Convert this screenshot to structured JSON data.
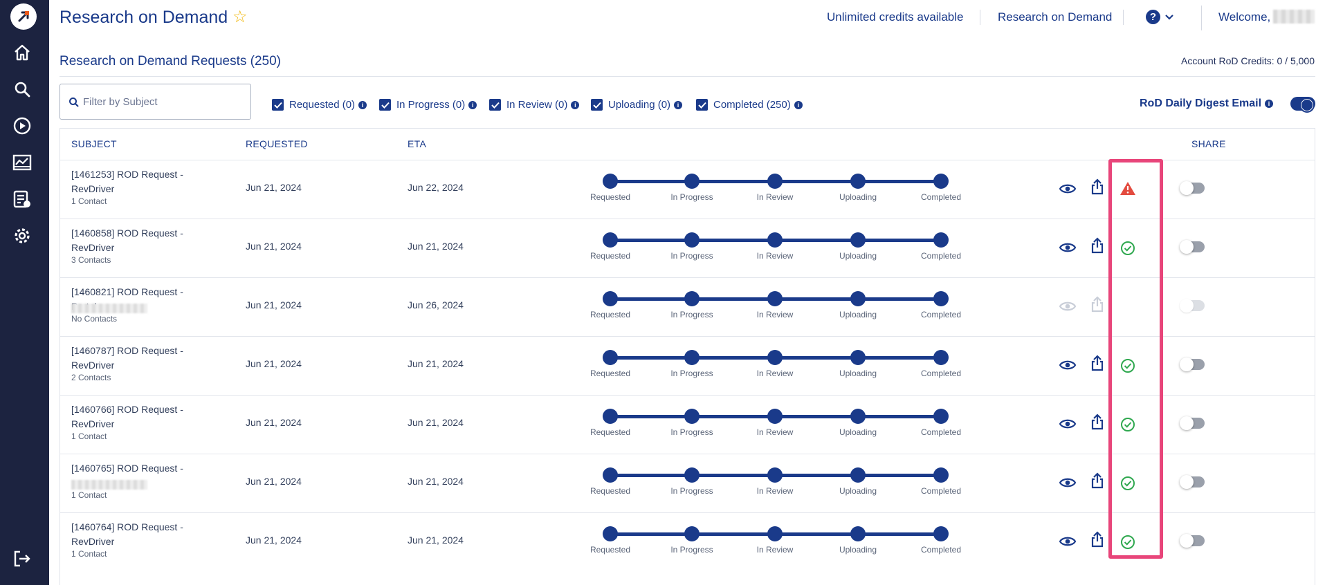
{
  "header": {
    "title": "Research on Demand",
    "links": [
      "Unlimited credits available",
      "Research on Demand"
    ],
    "welcome": "Welcome,"
  },
  "section": {
    "title": "Research on Demand Requests (250)",
    "credits": "Account RoD Credits: 0 / 5,000"
  },
  "filter": {
    "placeholder": "Filter by Subject"
  },
  "statuses": [
    {
      "label": "Requested (0)",
      "checked": true
    },
    {
      "label": "In Progress (0)",
      "checked": true
    },
    {
      "label": "In Review (0)",
      "checked": true
    },
    {
      "label": "Uploading (0)",
      "checked": true
    },
    {
      "label": "Completed (250)",
      "checked": true
    }
  ],
  "digest": {
    "label": "RoD Daily Digest Email",
    "enabled": true
  },
  "columns": {
    "subject": "SUBJECT",
    "requested": "REQUESTED",
    "eta": "ETA",
    "share": "SHARE"
  },
  "stages": [
    "Requested",
    "In Progress",
    "In Review",
    "Uploading",
    "Completed"
  ],
  "rows": [
    {
      "line1": "[1461253] ROD Request -",
      "line2": "RevDriver",
      "contacts": "1 Contact",
      "requested": "Jun 21, 2024",
      "eta": "Jun 22, 2024",
      "status": "warning",
      "actions_enabled": true
    },
    {
      "line1": "[1460858] ROD Request -",
      "line2": "RevDriver",
      "contacts": "3 Contacts",
      "requested": "Jun 21, 2024",
      "eta": "Jun 21, 2024",
      "status": "ok",
      "actions_enabled": true
    },
    {
      "line1": "[1460821] ROD Request - Portal",
      "line2": "",
      "contacts": "No Contacts",
      "requested": "Jun 21, 2024",
      "eta": "Jun 26, 2024",
      "status": "none",
      "actions_enabled": false
    },
    {
      "line1": "[1460787] ROD Request -",
      "line2": "RevDriver",
      "contacts": "2 Contacts",
      "requested": "Jun 21, 2024",
      "eta": "Jun 21, 2024",
      "status": "ok",
      "actions_enabled": true
    },
    {
      "line1": "[1460766] ROD Request -",
      "line2": "RevDriver",
      "contacts": "1 Contact",
      "requested": "Jun 21, 2024",
      "eta": "Jun 21, 2024",
      "status": "ok",
      "actions_enabled": true
    },
    {
      "line1": "[1460765] ROD Request -",
      "line2": "",
      "contacts": "1 Contact",
      "requested": "Jun 21, 2024",
      "eta": "Jun 21, 2024",
      "status": "ok",
      "actions_enabled": true
    },
    {
      "line1": "[1460764] ROD Request -",
      "line2": "RevDriver",
      "contacts": "1 Contact",
      "requested": "Jun 21, 2024",
      "eta": "Jun 21, 2024",
      "status": "ok",
      "actions_enabled": true
    }
  ],
  "colors": {
    "primary": "#1a3a8a",
    "sidebar": "#1c2340",
    "success": "#2fa84f",
    "warning": "#e34b3f",
    "highlight": "#e8457a"
  }
}
